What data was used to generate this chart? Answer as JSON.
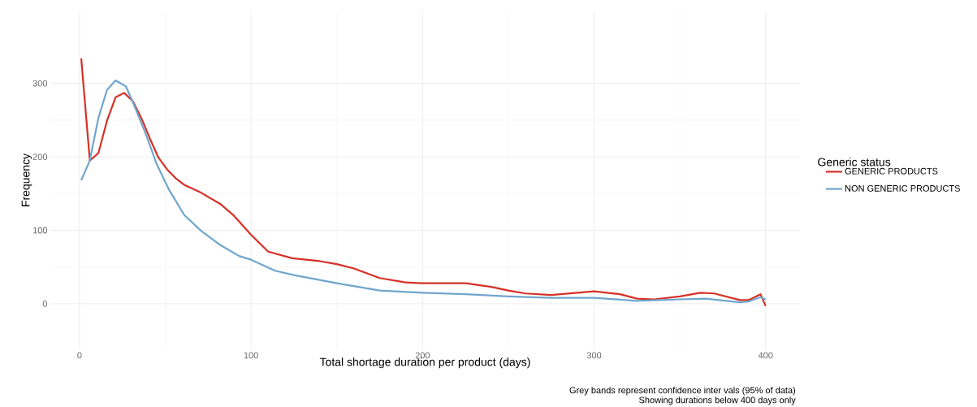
{
  "chart_data": {
    "type": "line",
    "xlabel": "Total shortage duration per product (days)",
    "ylabel": "Frequency",
    "legend_title": "Generic status",
    "legend": "right",
    "grid": true,
    "marker": "none",
    "line_style": "solid",
    "xlim": [
      -17,
      420
    ],
    "ylim": [
      -62,
      398
    ],
    "xticks": [
      0,
      100,
      200,
      300,
      400
    ],
    "yticks": [
      0,
      100,
      200,
      300
    ],
    "annotations": [
      "Grey bands represent confidence inter vals (95% of data)",
      "Showing durations below 400 days only"
    ],
    "series": [
      {
        "name": "GENERIC PRODUCTS",
        "color": "#d73027",
        "x": [
          1,
          6,
          11,
          16,
          21,
          26,
          31,
          36,
          41,
          46,
          51,
          56,
          61,
          71,
          82,
          90,
          100,
          110,
          124,
          140,
          150,
          160,
          175,
          190,
          200,
          225,
          240,
          250,
          260,
          275,
          300,
          315,
          325,
          335,
          350,
          362,
          370,
          385,
          390,
          397,
          400
        ],
        "values": [
          334,
          195,
          205,
          249,
          281,
          287,
          276,
          253,
          225,
          199,
          183,
          171,
          162,
          151,
          136,
          120,
          94,
          71,
          62,
          58,
          54,
          48,
          35,
          29,
          28,
          28,
          23,
          18,
          14,
          12,
          17,
          13,
          7,
          6,
          10,
          15,
          14,
          5,
          5,
          13,
          -3
        ]
      },
      {
        "name": "NON GENERIC PRODUCTS",
        "color": "#6fa6cc",
        "x": [
          1,
          6,
          11,
          16,
          21,
          27,
          31,
          39,
          45,
          52,
          61,
          71,
          82,
          93,
          100,
          114,
          125,
          150,
          175,
          200,
          225,
          250,
          275,
          300,
          325,
          350,
          365,
          385,
          390,
          397,
          400
        ],
        "values": [
          168,
          195,
          253,
          291,
          304,
          296,
          275,
          229,
          190,
          156,
          121,
          99,
          80,
          65,
          60,
          45,
          39,
          28,
          18,
          15,
          13,
          10,
          8,
          8,
          4,
          6,
          7,
          2,
          3,
          9,
          6
        ]
      }
    ]
  }
}
